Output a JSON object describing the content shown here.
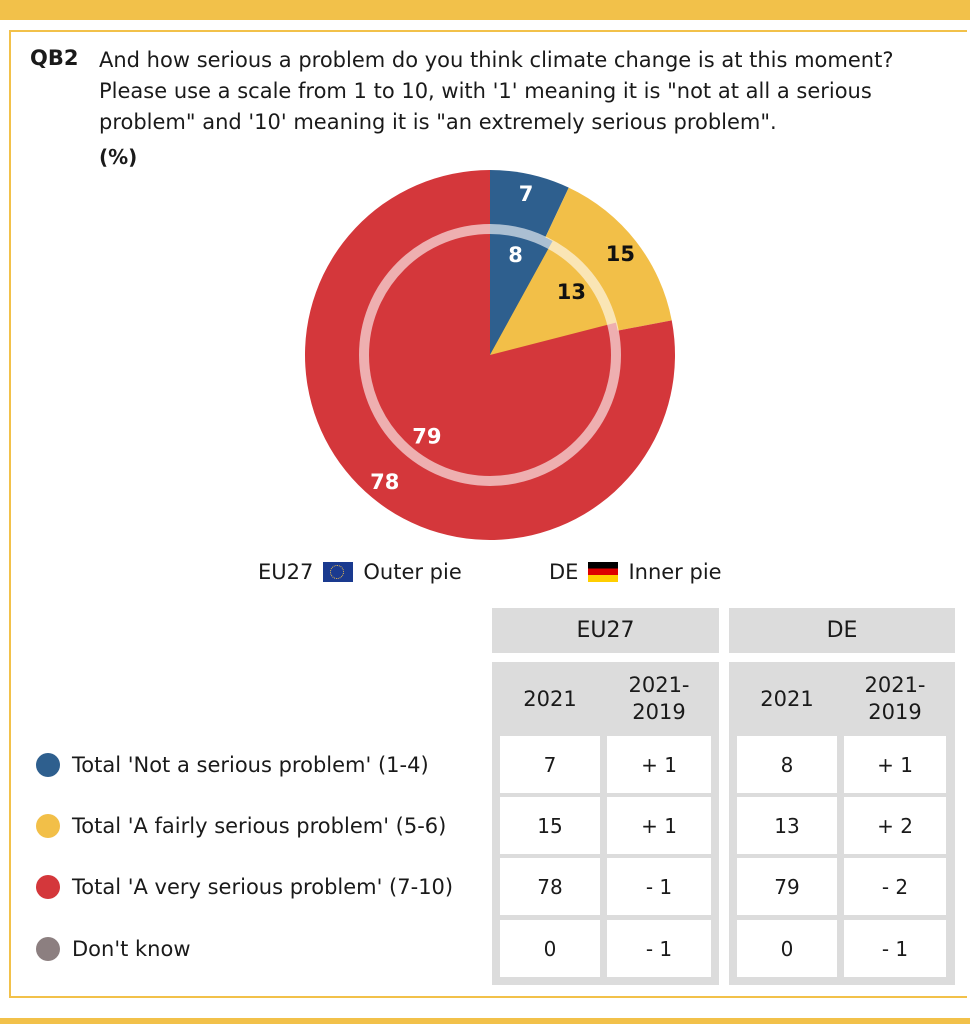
{
  "question": {
    "code": "QB2",
    "lines": [
      "And how serious a problem do you think climate change is at this moment?",
      "Please use a scale from 1 to 10, with '1' meaning it is \"not at all a serious",
      "problem\" and '10' meaning it is \"an extremely serious problem\"."
    ],
    "unit": "(%)"
  },
  "legend": {
    "eu": {
      "label": "EU27",
      "pie": "Outer pie"
    },
    "de": {
      "label": "DE",
      "pie": "Inner pie"
    }
  },
  "table": {
    "groups": [
      "EU27",
      "DE"
    ],
    "subheaders": [
      "2021",
      "2021-\n2019",
      "2021",
      "2021-\n2019"
    ],
    "rows": [
      {
        "label": "Total 'Not a serious problem' (1-4)",
        "color": "#2e5f8e",
        "values": [
          "7",
          "+ 1",
          "8",
          "+ 1"
        ]
      },
      {
        "label": "Total 'A fairly serious problem' (5-6)",
        "color": "#f2bf48",
        "values": [
          "15",
          "+ 1",
          "13",
          "+ 2"
        ]
      },
      {
        "label": "Total 'A very serious problem' (7-10)",
        "color": "#d4373b",
        "values": [
          "78",
          "- 1",
          "79",
          "- 2"
        ]
      },
      {
        "label": "Don't know",
        "color": "#8c7f80",
        "values": [
          "0",
          "- 1",
          "0",
          "- 1"
        ]
      }
    ]
  },
  "chart_data": {
    "type": "pie",
    "title": "",
    "categories": [
      "Total 'Not a serious problem' (1-4)",
      "Total 'A fairly serious problem' (5-6)",
      "Total 'A very serious problem' (7-10)",
      "Don't know"
    ],
    "colors": [
      "#2e5f8e",
      "#f2bf48",
      "#d4373b",
      "#8c7f80"
    ],
    "series": [
      {
        "name": "EU27",
        "values": [
          7,
          15,
          78,
          0
        ],
        "ring": "outer"
      },
      {
        "name": "DE",
        "values": [
          8,
          13,
          79,
          0
        ],
        "ring": "inner"
      }
    ],
    "unit": "%"
  }
}
